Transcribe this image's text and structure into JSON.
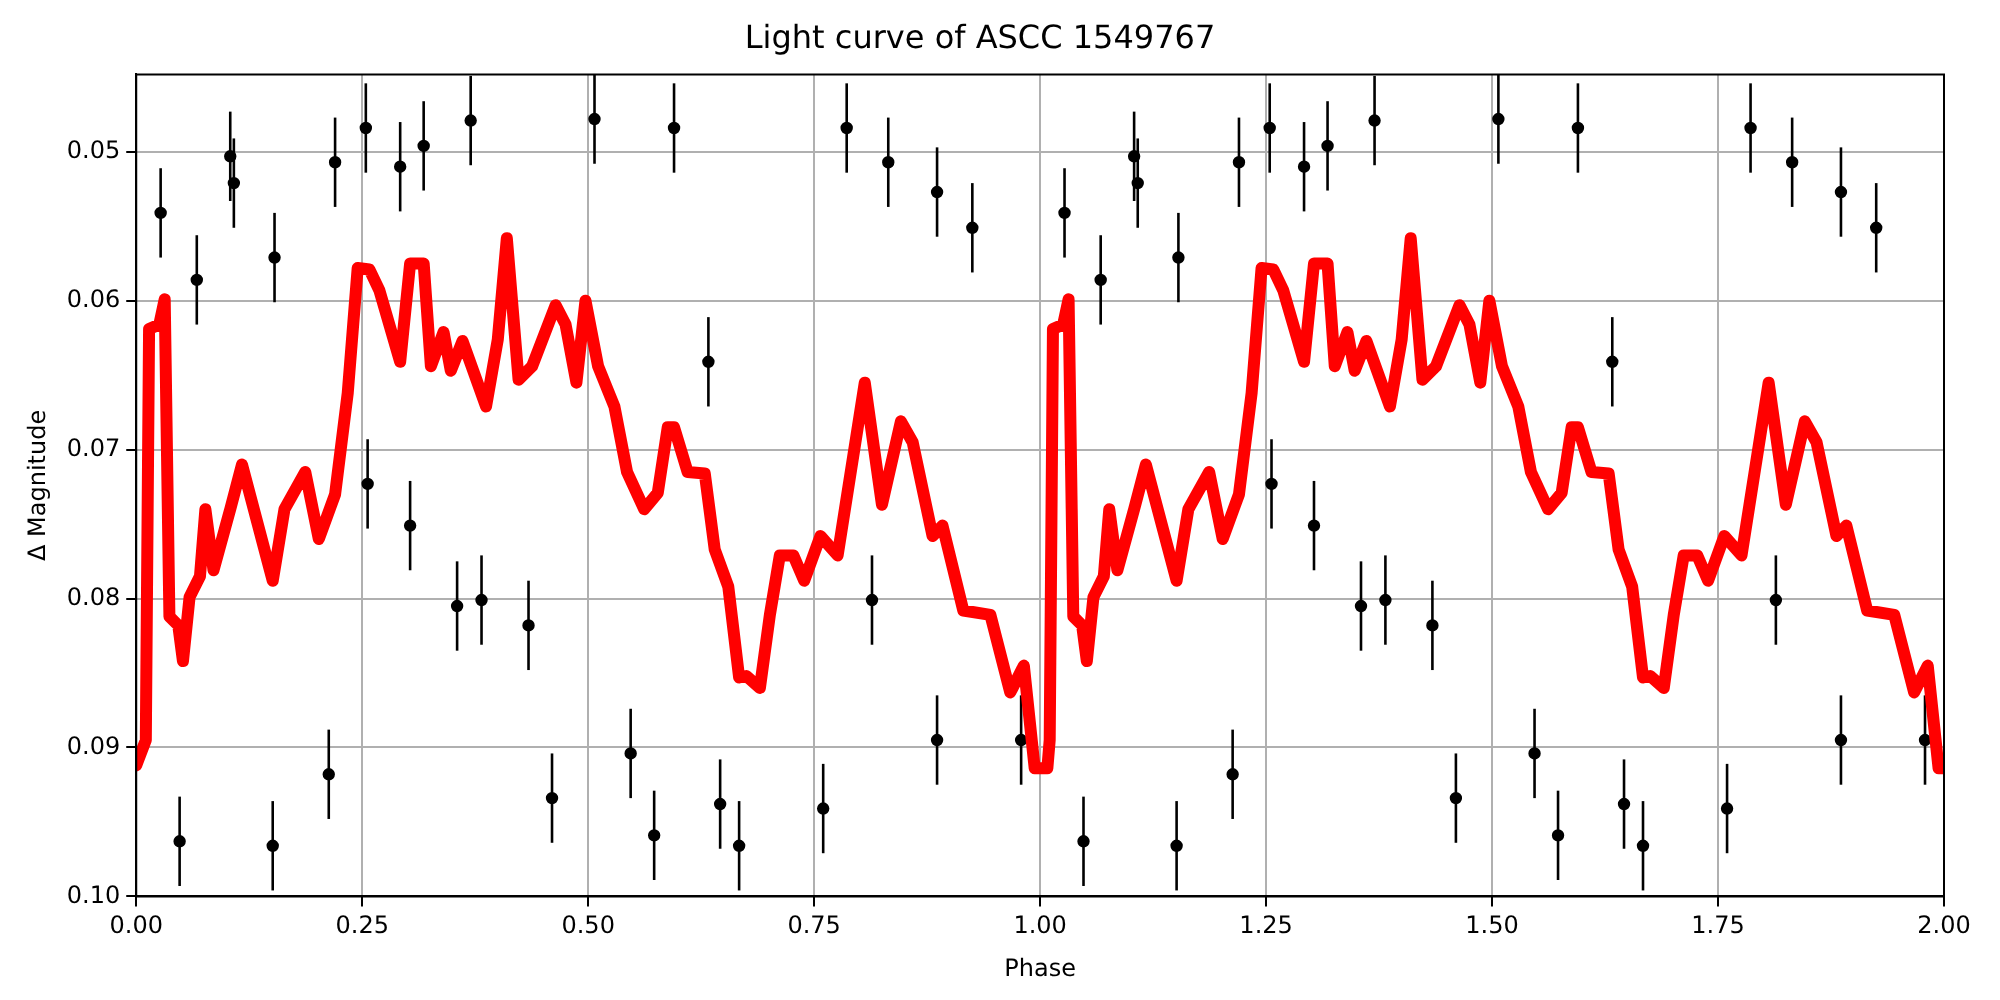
{
  "chart_data": {
    "type": "scatter",
    "title": "Light curve of ASCC 1549767",
    "xlabel": "Phase",
    "ylabel": "Δ Magnitude",
    "xlim": [
      0,
      2
    ],
    "xticks": [
      {
        "value": 0,
        "label": "0.00"
      },
      {
        "value": 0.25,
        "label": "0.25"
      },
      {
        "value": 0.5,
        "label": "0.50"
      },
      {
        "value": 0.75,
        "label": "0.75"
      },
      {
        "value": 1,
        "label": "1.00"
      },
      {
        "value": 1.25,
        "label": "1.25"
      },
      {
        "value": 1.5,
        "label": "1.50"
      },
      {
        "value": 1.75,
        "label": "1.75"
      },
      {
        "value": 2,
        "label": "2.00"
      }
    ],
    "ylim": [
      0.1,
      0.0448
    ],
    "yticks": [
      0.05,
      0.06,
      0.07,
      0.08,
      0.09,
      {
        "value": 0.1,
        "label": "0.10"
      }
    ],
    "grid": true,
    "legend": false,
    "series": [
      {
        "color": "#000000",
        "marker": "circle",
        "x": [
          0.027,
          0.048,
          0.067,
          0.104,
          0.108,
          0.151,
          0.153,
          0.213,
          0.22,
          0.254,
          0.256,
          0.292,
          0.303,
          0.318,
          0.355,
          0.37,
          0.382,
          0.434,
          0.46,
          0.507,
          0.547,
          0.573,
          0.595,
          0.633,
          0.646,
          0.667,
          0.76,
          0.786,
          0.814,
          0.832,
          0.886,
          0.886,
          0.925,
          0.979,
          1.027,
          1.048,
          1.067,
          1.104,
          1.108,
          1.151,
          1.153,
          1.213,
          1.22,
          1.254,
          1.256,
          1.292,
          1.303,
          1.318,
          1.355,
          1.37,
          1.382,
          1.434,
          1.46,
          1.507,
          1.547,
          1.573,
          1.595,
          1.633,
          1.646,
          1.667,
          1.76,
          1.786,
          1.814,
          1.832,
          1.886,
          1.886,
          1.925,
          1.979
        ],
        "values": [
          0.0541,
          0.0963,
          0.0586,
          0.0503,
          0.0521,
          0.0966,
          0.0571,
          0.0918,
          0.0507,
          0.0484,
          0.0723,
          0.051,
          0.0751,
          0.0496,
          0.0805,
          0.0479,
          0.0801,
          0.0818,
          0.0934,
          0.0478,
          0.0904,
          0.0959,
          0.0484,
          0.0641,
          0.0938,
          0.0966,
          0.0941,
          0.0484,
          0.0801,
          0.0507,
          0.0527,
          0.0895,
          0.0551,
          0.0895,
          0.0541,
          0.0963,
          0.0586,
          0.0503,
          0.0521,
          0.0966,
          0.0571,
          0.0918,
          0.0507,
          0.0484,
          0.0723,
          0.051,
          0.0751,
          0.0496,
          0.0805,
          0.0479,
          0.0801,
          0.0818,
          0.0934,
          0.0478,
          0.0904,
          0.0959,
          0.0484,
          0.0641,
          0.0938,
          0.0966,
          0.0941,
          0.0484,
          0.0801,
          0.0507,
          0.0527,
          0.0895,
          0.0551,
          0.0895
        ],
        "errors": [
          0.003,
          0.003,
          0.003,
          0.003,
          0.003,
          0.003,
          0.003,
          0.003,
          0.003,
          0.003,
          0.003,
          0.003,
          0.003,
          0.003,
          0.003,
          0.003,
          0.003,
          0.003,
          0.003,
          0.003,
          0.003,
          0.003,
          0.003,
          0.003,
          0.003,
          0.003,
          0.003,
          0.003,
          0.003,
          0.003,
          0.003,
          0.003,
          0.003,
          0.003,
          0.003,
          0.003,
          0.003,
          0.003,
          0.003,
          0.003,
          0.003,
          0.003,
          0.003,
          0.003,
          0.003,
          0.003,
          0.003,
          0.003,
          0.003,
          0.003,
          0.003,
          0.003,
          0.003,
          0.003,
          0.003,
          0.003,
          0.003,
          0.003,
          0.003,
          0.003,
          0.003,
          0.003,
          0.003,
          0.003,
          0.003,
          0.003,
          0.003,
          0.003
        ]
      },
      {
        "type": "line",
        "color": "#ff0000",
        "marker": "none",
        "x": [
          0,
          0.0106,
          0.0142,
          0.0255,
          0.0315,
          0.0367,
          0.0465,
          0.0517,
          0.059,
          0.0705,
          0.0765,
          0.0855,
          0.104,
          0.117,
          0.151,
          0.164,
          0.187,
          0.202,
          0.22,
          0.234,
          0.245,
          0.258,
          0.269,
          0.292,
          0.303,
          0.318,
          0.326,
          0.34,
          0.348,
          0.361,
          0.387,
          0.4,
          0.41,
          0.423,
          0.438,
          0.464,
          0.475,
          0.487,
          0.497,
          0.511,
          0.529,
          0.543,
          0.562,
          0.577,
          0.588,
          0.595,
          0.61,
          0.629,
          0.64,
          0.655,
          0.667,
          0.675,
          0.69,
          0.701,
          0.712,
          0.727,
          0.739,
          0.757,
          0.776,
          0.806,
          0.825,
          0.846,
          0.859,
          0.881,
          0.892,
          0.915,
          0.945,
          0.967,
          0.982,
          0.994,
          1.008,
          1.0106,
          1.0142,
          1.0255,
          1.0315,
          1.0367,
          1.0465,
          1.0517,
          1.059,
          1.0705,
          1.0765,
          1.0855,
          1.104,
          1.117,
          1.151,
          1.164,
          1.187,
          1.202,
          1.22,
          1.234,
          1.245,
          1.258,
          1.269,
          1.292,
          1.303,
          1.318,
          1.326,
          1.34,
          1.348,
          1.361,
          1.387,
          1.4,
          1.41,
          1.423,
          1.438,
          1.464,
          1.475,
          1.487,
          1.497,
          1.511,
          1.529,
          1.543,
          1.562,
          1.577,
          1.588,
          1.595,
          1.61,
          1.629,
          1.64,
          1.655,
          1.667,
          1.675,
          1.69,
          1.701,
          1.712,
          1.727,
          1.739,
          1.757,
          1.776,
          1.806,
          1.825,
          1.846,
          1.859,
          1.881,
          1.892,
          1.915,
          1.945,
          1.967,
          1.982,
          1.994,
          2.0
        ],
        "values": [
          0.0912,
          0.0895,
          0.0619,
          0.0616,
          0.0599,
          0.0812,
          0.0818,
          0.0842,
          0.0799,
          0.0785,
          0.074,
          0.0781,
          0.074,
          0.071,
          0.0788,
          0.074,
          0.0715,
          0.076,
          0.073,
          0.0662,
          0.0578,
          0.0579,
          0.0593,
          0.0641,
          0.0575,
          0.0575,
          0.0644,
          0.0621,
          0.0647,
          0.0627,
          0.0671,
          0.0626,
          0.0558,
          0.0653,
          0.0644,
          0.0603,
          0.0616,
          0.0655,
          0.06,
          0.0644,
          0.0671,
          0.0715,
          0.074,
          0.0729,
          0.0685,
          0.0685,
          0.0715,
          0.0716,
          0.0767,
          0.0792,
          0.0853,
          0.0852,
          0.086,
          0.0811,
          0.0771,
          0.0771,
          0.0788,
          0.0758,
          0.0771,
          0.0655,
          0.0737,
          0.0681,
          0.0695,
          0.0758,
          0.0751,
          0.0808,
          0.0811,
          0.0863,
          0.0845,
          0.0914,
          0.0914,
          0.0895,
          0.0619,
          0.0616,
          0.0599,
          0.0812,
          0.0818,
          0.0842,
          0.0799,
          0.0785,
          0.074,
          0.0781,
          0.074,
          0.071,
          0.0788,
          0.074,
          0.0715,
          0.076,
          0.073,
          0.0662,
          0.0578,
          0.0579,
          0.0593,
          0.0641,
          0.0575,
          0.0575,
          0.0644,
          0.0621,
          0.0647,
          0.0627,
          0.0671,
          0.0626,
          0.0558,
          0.0653,
          0.0644,
          0.0603,
          0.0616,
          0.0655,
          0.06,
          0.0644,
          0.0671,
          0.0715,
          0.074,
          0.0729,
          0.0685,
          0.0685,
          0.0715,
          0.0716,
          0.0767,
          0.0792,
          0.0853,
          0.0852,
          0.086,
          0.0811,
          0.0771,
          0.0771,
          0.0788,
          0.0758,
          0.0771,
          0.0655,
          0.0737,
          0.0681,
          0.0695,
          0.0758,
          0.0751,
          0.0808,
          0.0811,
          0.0863,
          0.0845,
          0.0914,
          0.0914
        ]
      }
    ]
  }
}
